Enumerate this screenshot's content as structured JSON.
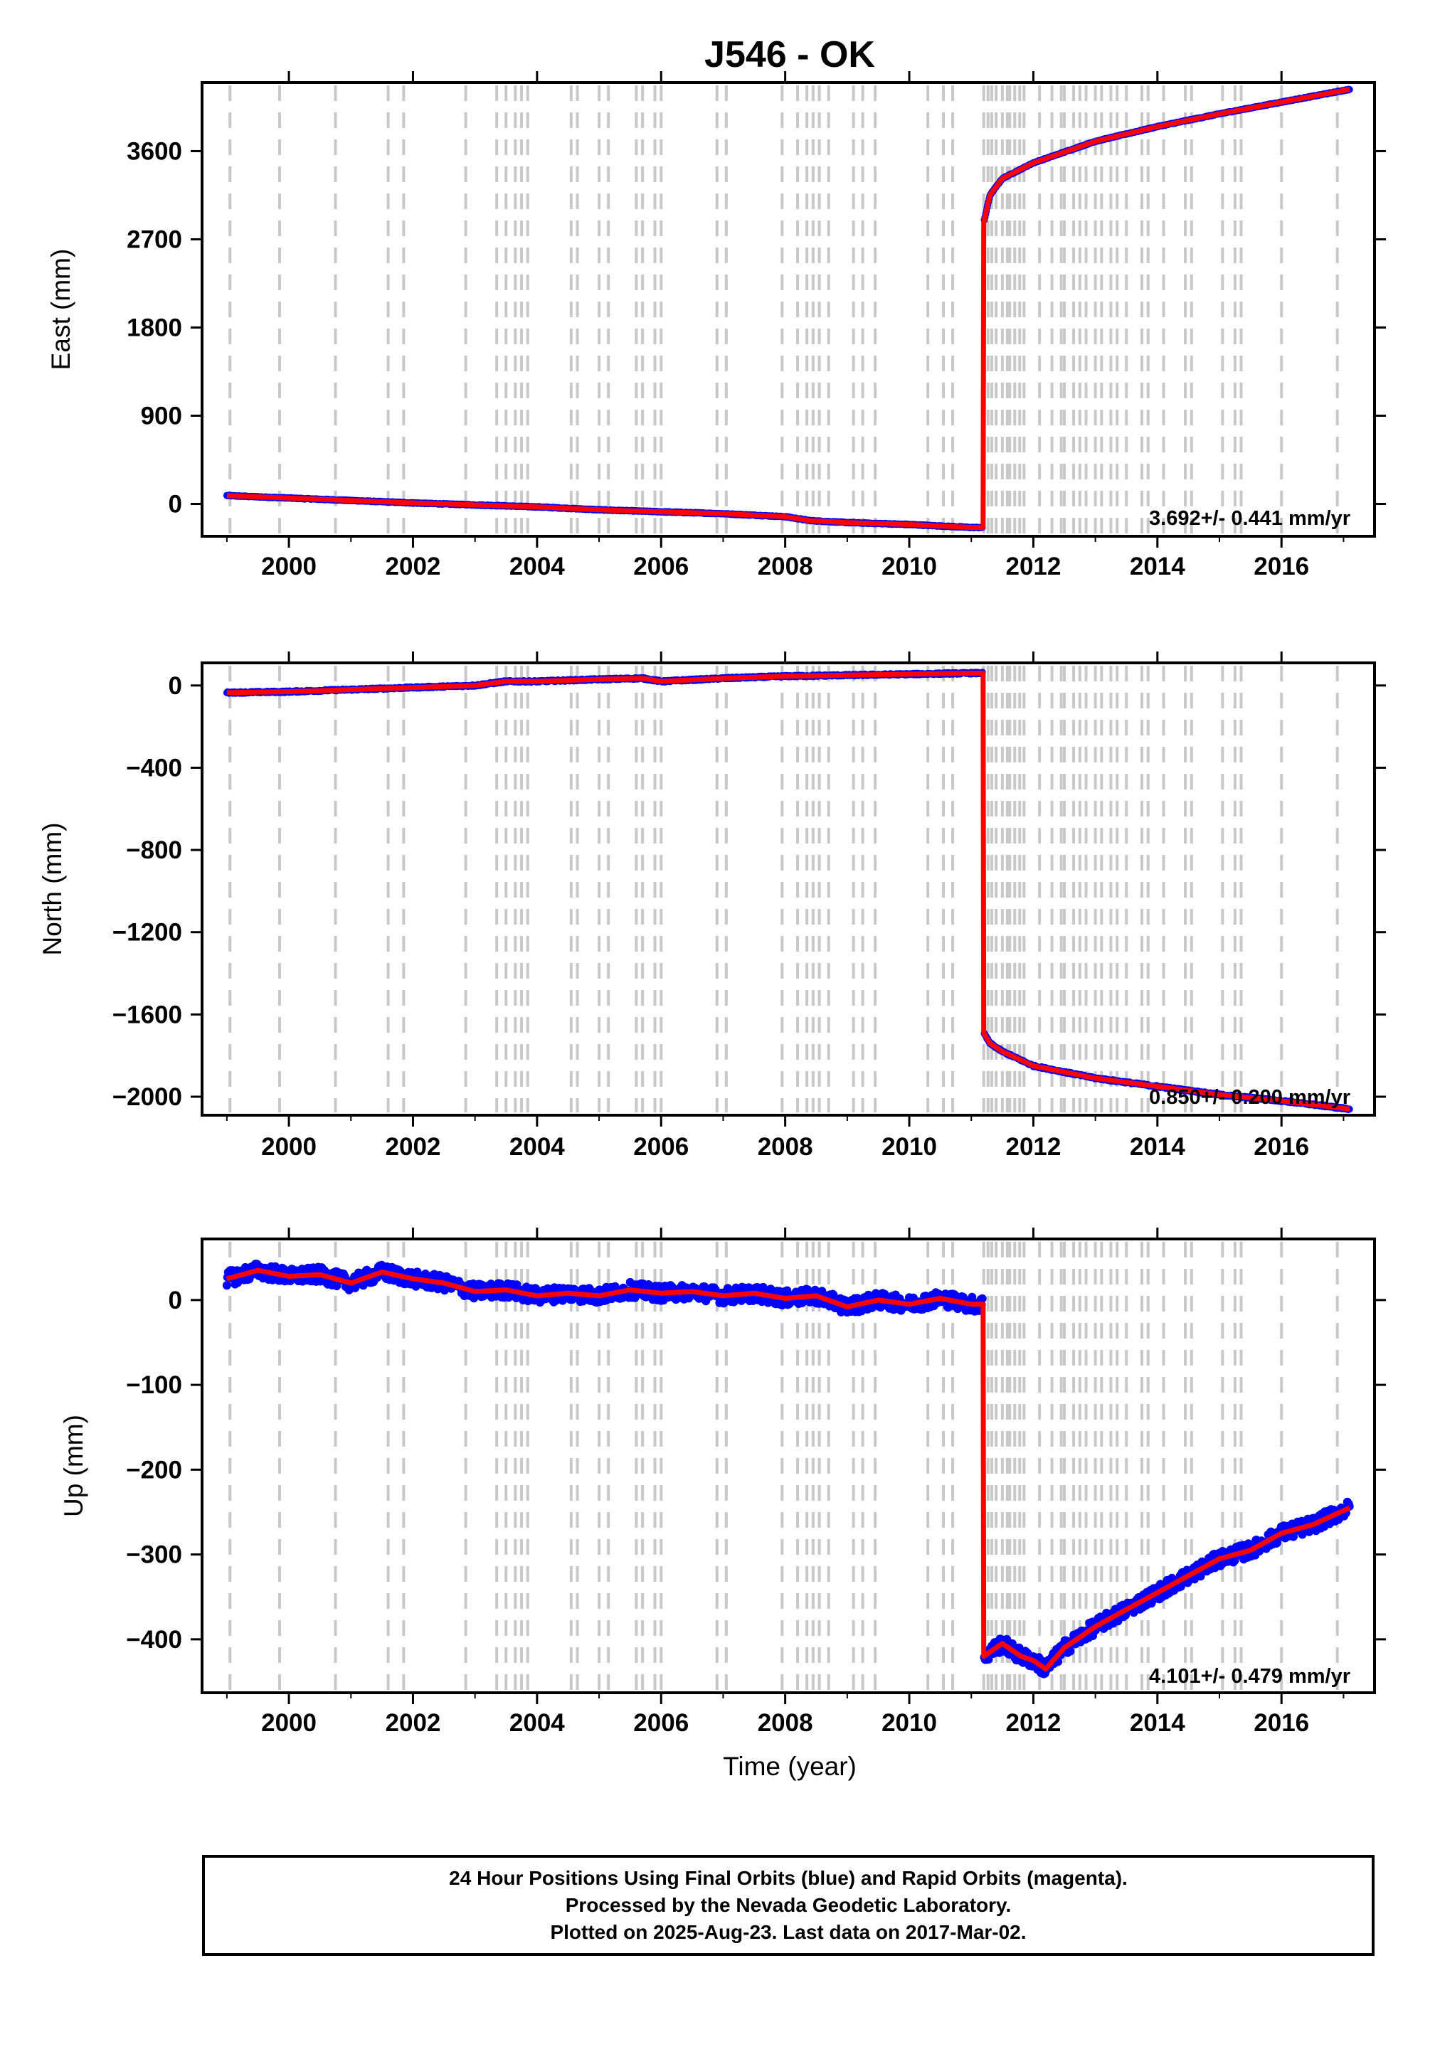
{
  "chart_data": [
    {
      "type": "scatter",
      "title": "J546 - OK",
      "ylabel": "East (mm)",
      "xlabel": "",
      "xlim": [
        1998.6,
        2017.5
      ],
      "ylim": [
        -330,
        4300
      ],
      "yticks": [
        0,
        900,
        1800,
        2700,
        3600
      ],
      "xticks": [
        2000,
        2002,
        2004,
        2006,
        2008,
        2010,
        2012,
        2014,
        2016
      ],
      "rate_text": "3.692+/- 0.441 mm/yr",
      "grid": "vertical dashed lines at equipment/event dates",
      "series_colors": {
        "final": "#0000ff",
        "model": "#ff0000"
      },
      "series": [
        {
          "name": "Final Orbits (blue)",
          "x": [
            1999.0,
            2000.0,
            2001.0,
            2002.0,
            2003.0,
            2004.0,
            2005.0,
            2006.0,
            2007.0,
            2008.0,
            2008.4,
            2009.0,
            2010.0,
            2011.0,
            2011.19,
            2011.2,
            2011.3,
            2011.5,
            2012.0,
            2013.0,
            2014.0,
            2015.0,
            2016.0,
            2017.1
          ],
          "y": [
            85,
            60,
            35,
            10,
            -10,
            -30,
            -60,
            -80,
            -100,
            -130,
            -170,
            -190,
            -210,
            -240,
            -240,
            2870,
            3150,
            3320,
            3480,
            3700,
            3850,
            3980,
            4100,
            4230
          ]
        }
      ]
    },
    {
      "type": "scatter",
      "title": "",
      "ylabel": "North (mm)",
      "xlabel": "",
      "xlim": [
        1998.6,
        2017.5
      ],
      "ylim": [
        -2090,
        110
      ],
      "yticks": [
        0,
        -400,
        -800,
        -1200,
        -1600,
        -2000
      ],
      "xticks": [
        2000,
        2002,
        2004,
        2006,
        2008,
        2010,
        2012,
        2014,
        2016
      ],
      "rate_text": "0.850+/- 0.200 mm/yr",
      "series": [
        {
          "name": "Final Orbits (blue)",
          "x": [
            1999.0,
            2000.0,
            2001.0,
            2002.0,
            2003.0,
            2003.5,
            2004.0,
            2005.0,
            2005.7,
            2006.0,
            2007.0,
            2008.0,
            2009.0,
            2010.0,
            2011.0,
            2011.19,
            2011.2,
            2011.3,
            2011.5,
            2012.0,
            2013.0,
            2014.0,
            2015.0,
            2016.0,
            2017.1
          ],
          "y": [
            -35,
            -30,
            -20,
            -10,
            0,
            20,
            20,
            30,
            35,
            20,
            35,
            45,
            50,
            55,
            60,
            60,
            -1690,
            -1740,
            -1780,
            -1850,
            -1910,
            -1950,
            -1990,
            -2020,
            -2060
          ]
        }
      ]
    },
    {
      "type": "scatter",
      "title": "",
      "ylabel": "Up (mm)",
      "xlabel": "Time (year)",
      "xlim": [
        1998.6,
        2017.5
      ],
      "ylim": [
        -463,
        72
      ],
      "yticks": [
        0,
        -100,
        -200,
        -300,
        -400
      ],
      "xticks": [
        2000,
        2002,
        2004,
        2006,
        2008,
        2010,
        2012,
        2014,
        2016
      ],
      "rate_text": "4.101+/- 0.479 mm/yr",
      "series": [
        {
          "name": "Final Orbits (blue)",
          "x": [
            1999.0,
            1999.5,
            2000.0,
            2000.5,
            2001.0,
            2001.5,
            2002.0,
            2002.5,
            2003.0,
            2003.5,
            2004.0,
            2004.5,
            2005.0,
            2005.5,
            2006.0,
            2006.5,
            2007.0,
            2007.5,
            2008.0,
            2008.5,
            2009.0,
            2009.5,
            2010.0,
            2010.5,
            2011.0,
            2011.19,
            2011.2,
            2011.5,
            2011.8,
            2012.0,
            2012.2,
            2012.5,
            2013.0,
            2013.5,
            2014.0,
            2014.5,
            2015.0,
            2015.5,
            2016.0,
            2016.5,
            2017.1
          ],
          "y": [
            25,
            35,
            28,
            30,
            20,
            33,
            25,
            20,
            10,
            12,
            5,
            8,
            5,
            12,
            8,
            10,
            5,
            8,
            2,
            5,
            -8,
            0,
            -5,
            2,
            -5,
            -5,
            -420,
            -405,
            -420,
            -425,
            -435,
            -410,
            -385,
            -365,
            -345,
            -325,
            -305,
            -295,
            -275,
            -265,
            -245
          ]
        }
      ]
    }
  ],
  "event_lines": [
    1999.05,
    1999.85,
    2000.75,
    2001.6,
    2001.85,
    2002.85,
    2003.35,
    2003.5,
    2003.65,
    2003.75,
    2003.85,
    2004.55,
    2004.65,
    2005.0,
    2005.15,
    2005.6,
    2005.7,
    2005.9,
    2006.0,
    2006.9,
    2007.05,
    2007.95,
    2008.2,
    2008.35,
    2008.45,
    2008.55,
    2008.7,
    2009.1,
    2009.25,
    2009.45,
    2010.3,
    2010.55,
    2010.7,
    2011.2,
    2011.27,
    2011.33,
    2011.4,
    2011.5,
    2011.58,
    2011.62,
    2011.7,
    2011.78,
    2011.85,
    2012.1,
    2012.3,
    2012.45,
    2012.5,
    2012.65,
    2012.75,
    2012.85,
    2013.0,
    2013.1,
    2013.25,
    2013.35,
    2013.5,
    2013.75,
    2013.85,
    2014.1,
    2014.45,
    2014.55,
    2015.05,
    2015.25,
    2015.35,
    2016.0,
    2016.9
  ],
  "footer": {
    "line1": "24 Hour Positions Using Final Orbits (blue) and Rapid Orbits (magenta).",
    "line2": "Processed by the Nevada Geodetic Laboratory.",
    "line3": "Plotted on 2025-Aug-23. Last data on 2017-Mar-02."
  }
}
